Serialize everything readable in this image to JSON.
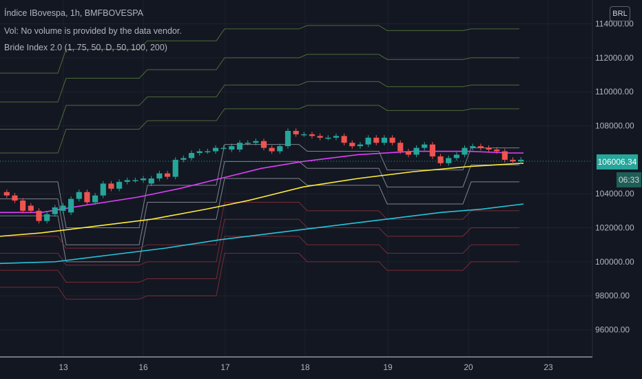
{
  "legend": {
    "title": "Índice IBovespa, 1h, BMFBOVESPA",
    "volume": "Vol: No volume is provided by the data vendor.",
    "indicator": "Bride Index 2.0 (1, 75, 50, D, 50, 100, 200)"
  },
  "currency": "BRL",
  "current_price": "106006.34",
  "countdown": "06:33",
  "colors": {
    "background": "#131722",
    "grid": "#1e222d",
    "up": "#26a69a",
    "down": "#ef5350",
    "ma50": "#e040fb",
    "ma100": "#ffeb3b",
    "ma200": "#26c6da",
    "bride_upper": "#5b7a3a",
    "bride_lower": "#8b2f3a",
    "bride_mid": "#9598a1"
  },
  "chart_data": {
    "type": "candlestick",
    "x_ticks": [
      "13",
      "16",
      "17",
      "18",
      "19",
      "20",
      "23"
    ],
    "y_ticks": [
      "114000.00",
      "112000.00",
      "110000.00",
      "108000.00",
      "104000.00",
      "102000.00",
      "100000.00",
      "98000.00",
      "96000.00"
    ],
    "ylim": [
      94400,
      115400
    ],
    "candles": [
      {
        "o": 104100,
        "c": 103900
      },
      {
        "o": 103900,
        "c": 103600
      },
      {
        "o": 103600,
        "c": 103000
      },
      {
        "o": 103300,
        "c": 103000
      },
      {
        "o": 103000,
        "c": 102400
      },
      {
        "o": 102400,
        "c": 102800
      },
      {
        "o": 102800,
        "c": 103200
      },
      {
        "o": 103000,
        "c": 103300
      },
      {
        "o": 102900,
        "c": 103700
      },
      {
        "o": 103700,
        "c": 104100
      },
      {
        "o": 104100,
        "c": 103500
      },
      {
        "o": 103500,
        "c": 103900
      },
      {
        "o": 103900,
        "c": 104600
      },
      {
        "o": 104600,
        "c": 104300
      },
      {
        "o": 104300,
        "c": 104700
      },
      {
        "o": 104700,
        "c": 104800
      },
      {
        "o": 104800,
        "c": 104800
      },
      {
        "o": 104800,
        "c": 104900
      },
      {
        "o": 104600,
        "c": 104900
      },
      {
        "o": 104900,
        "c": 105200
      },
      {
        "o": 105200,
        "c": 105000
      },
      {
        "o": 105000,
        "c": 106000
      },
      {
        "o": 106000,
        "c": 106100
      },
      {
        "o": 106100,
        "c": 106400
      },
      {
        "o": 106400,
        "c": 106500
      },
      {
        "o": 106500,
        "c": 106500
      },
      {
        "o": 106500,
        "c": 106700
      },
      {
        "o": 106700,
        "c": 106700
      },
      {
        "o": 106600,
        "c": 106800
      },
      {
        "o": 106600,
        "c": 107000
      },
      {
        "o": 107000,
        "c": 107000
      },
      {
        "o": 107000,
        "c": 107100
      },
      {
        "o": 107100,
        "c": 106700
      },
      {
        "o": 106700,
        "c": 106500
      },
      {
        "o": 106500,
        "c": 106800
      },
      {
        "o": 106800,
        "c": 107700
      },
      {
        "o": 107700,
        "c": 107500
      },
      {
        "o": 107500,
        "c": 107500
      },
      {
        "o": 107500,
        "c": 107400
      },
      {
        "o": 107400,
        "c": 107300
      },
      {
        "o": 107300,
        "c": 107300
      },
      {
        "o": 107300,
        "c": 107400
      },
      {
        "o": 107400,
        "c": 107000
      },
      {
        "o": 107000,
        "c": 106800
      },
      {
        "o": 106800,
        "c": 106900
      },
      {
        "o": 106900,
        "c": 107300
      },
      {
        "o": 107300,
        "c": 107000
      },
      {
        "o": 107000,
        "c": 107300
      },
      {
        "o": 107300,
        "c": 107000
      },
      {
        "o": 107000,
        "c": 106500
      },
      {
        "o": 106500,
        "c": 106300
      },
      {
        "o": 106300,
        "c": 106700
      },
      {
        "o": 106700,
        "c": 106900
      },
      {
        "o": 106900,
        "c": 106200
      },
      {
        "o": 106200,
        "c": 105800
      },
      {
        "o": 105800,
        "c": 106100
      },
      {
        "o": 106100,
        "c": 106300
      },
      {
        "o": 106300,
        "c": 106700
      },
      {
        "o": 106700,
        "c": 106800
      },
      {
        "o": 106800,
        "c": 106700
      },
      {
        "o": 106700,
        "c": 106600
      },
      {
        "o": 106600,
        "c": 106500
      },
      {
        "o": 106500,
        "c": 106000
      },
      {
        "o": 106000,
        "c": 105900
      },
      {
        "o": 105900,
        "c": 106000
      }
    ],
    "ma50": [
      [
        0,
        102900
      ],
      [
        60,
        102900
      ],
      [
        120,
        103300
      ],
      [
        200,
        103800
      ],
      [
        260,
        104300
      ],
      [
        320,
        104900
      ],
      [
        380,
        105500
      ],
      [
        440,
        105900
      ],
      [
        520,
        106300
      ],
      [
        600,
        106500
      ],
      [
        680,
        106500
      ],
      [
        740,
        106400
      ],
      [
        760,
        106400
      ]
    ],
    "ma100": [
      [
        0,
        101500
      ],
      [
        60,
        101700
      ],
      [
        140,
        102100
      ],
      [
        220,
        102500
      ],
      [
        300,
        103100
      ],
      [
        360,
        103600
      ],
      [
        440,
        104400
      ],
      [
        520,
        104900
      ],
      [
        600,
        105300
      ],
      [
        680,
        105600
      ],
      [
        760,
        105800
      ]
    ],
    "ma200": [
      [
        0,
        99900
      ],
      [
        80,
        100000
      ],
      [
        160,
        100400
      ],
      [
        240,
        100800
      ],
      [
        320,
        101300
      ],
      [
        400,
        101700
      ],
      [
        480,
        102100
      ],
      [
        560,
        102500
      ],
      [
        640,
        102900
      ],
      [
        700,
        103100
      ],
      [
        760,
        103400
      ]
    ],
    "bride_segments": [
      [
        0,
        90
      ],
      [
        90,
        208
      ],
      [
        208,
        320
      ],
      [
        320,
        440
      ],
      [
        440,
        556
      ],
      [
        556,
        678
      ],
      [
        678,
        760
      ]
    ]
  }
}
